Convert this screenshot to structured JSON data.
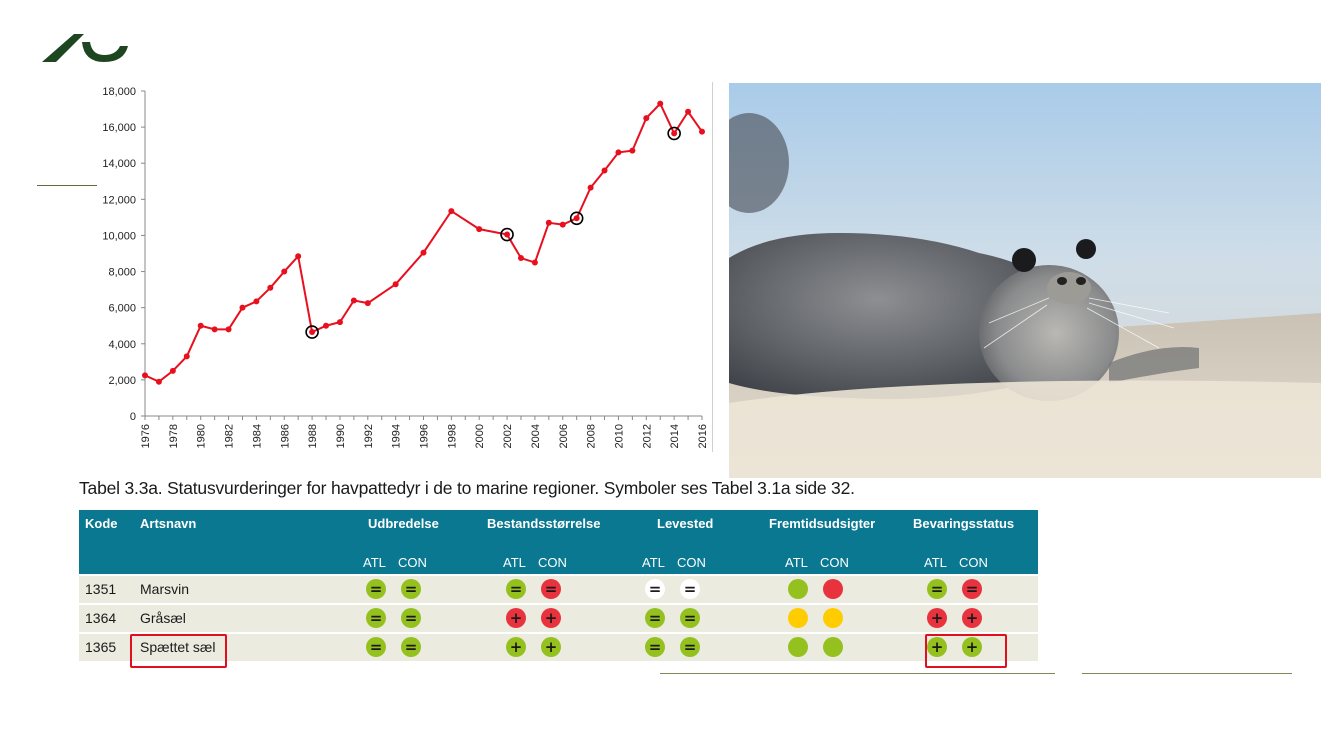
{
  "logo": {
    "icon": "university-logo-icon",
    "color": "#1e4620"
  },
  "chart_data": {
    "type": "line",
    "title": "",
    "xlabel": "",
    "ylabel": "",
    "ylim": [
      0,
      18000
    ],
    "yticks": [
      "0",
      "2,000",
      "4,000",
      "6,000",
      "8,000",
      "10,000",
      "12,000",
      "14,000",
      "16,000",
      "18,000"
    ],
    "xticks": [
      "1976",
      "1978",
      "1980",
      "1982",
      "1984",
      "1986",
      "1988",
      "1990",
      "1992",
      "1994",
      "1996",
      "1998",
      "2000",
      "2002",
      "2004",
      "2006",
      "2008",
      "2010",
      "2012",
      "2014",
      "2016"
    ],
    "series_color": "#e8101e",
    "x": [
      1976,
      1977,
      1978,
      1979,
      1980,
      1981,
      1982,
      1983,
      1984,
      1985,
      1986,
      1987,
      1988,
      1989,
      1990,
      1991,
      1992,
      1994,
      1996,
      1998,
      2000,
      2002,
      2003,
      2004,
      2005,
      2006,
      2007,
      2008,
      2009,
      2010,
      2011,
      2012,
      2013,
      2014,
      2015,
      2016
    ],
    "y": [
      2250,
      1900,
      2500,
      3300,
      5000,
      4800,
      4800,
      6000,
      6350,
      7100,
      8000,
      8850,
      4650,
      5000,
      5200,
      6400,
      6250,
      7300,
      9050,
      11350,
      10350,
      10050,
      8750,
      8500,
      10700,
      10600,
      10950,
      12650,
      13600,
      14600,
      14700,
      16500,
      17300,
      15650,
      16850,
      15750
    ],
    "highlighted_years": [
      1988,
      2002,
      2007,
      2014
    ]
  },
  "photo": {
    "description_icon": "harbor-seal-photo"
  },
  "table": {
    "caption": "Tabel 3.3a. Statusvurderinger for havpattedyr i de to marine regioner. Symboler ses Tabel 3.1a side 32.",
    "header_bg": "#0b7891",
    "row_bg": "#ecebe0",
    "headers": {
      "kode": "Kode",
      "artsnavn": "Artsnavn",
      "udbredelse": "Udbredelse",
      "bestand": "Bestandsstørrelse",
      "levested": "Levested",
      "fremtid": "Fremtidsudsigter",
      "bevaring": "Bevaringsstatus"
    },
    "sub_atl": "ATL",
    "sub_con": "CON",
    "colors": {
      "green": "#95c11f",
      "red": "#e8333f",
      "yellow": "#ffcc00",
      "white": "#ffffff"
    },
    "rows": [
      {
        "code": "1351",
        "name": "Marsvin",
        "cells": [
          {
            "color": "green",
            "sym": "="
          },
          {
            "color": "green",
            "sym": "="
          },
          {
            "color": "green",
            "sym": "="
          },
          {
            "color": "red",
            "sym": "="
          },
          {
            "color": "white",
            "sym": "="
          },
          {
            "color": "white",
            "sym": "="
          },
          {
            "color": "green",
            "sym": ""
          },
          {
            "color": "red",
            "sym": ""
          },
          {
            "color": "green",
            "sym": "="
          },
          {
            "color": "red",
            "sym": "="
          }
        ]
      },
      {
        "code": "1364",
        "name": "Gråsæl",
        "cells": [
          {
            "color": "green",
            "sym": "="
          },
          {
            "color": "green",
            "sym": "="
          },
          {
            "color": "red",
            "sym": "+"
          },
          {
            "color": "red",
            "sym": "+"
          },
          {
            "color": "green",
            "sym": "="
          },
          {
            "color": "green",
            "sym": "="
          },
          {
            "color": "yellow",
            "sym": ""
          },
          {
            "color": "yellow",
            "sym": ""
          },
          {
            "color": "red",
            "sym": "+"
          },
          {
            "color": "red",
            "sym": "+"
          }
        ]
      },
      {
        "code": "1365",
        "name": "Spættet sæl",
        "cells": [
          {
            "color": "green",
            "sym": "="
          },
          {
            "color": "green",
            "sym": "="
          },
          {
            "color": "green",
            "sym": "+"
          },
          {
            "color": "green",
            "sym": "+"
          },
          {
            "color": "green",
            "sym": "="
          },
          {
            "color": "green",
            "sym": "="
          },
          {
            "color": "green",
            "sym": ""
          },
          {
            "color": "green",
            "sym": ""
          },
          {
            "color": "green",
            "sym": "+"
          },
          {
            "color": "green",
            "sym": "+"
          }
        ]
      }
    ],
    "highlight_color": "#e0101e"
  }
}
